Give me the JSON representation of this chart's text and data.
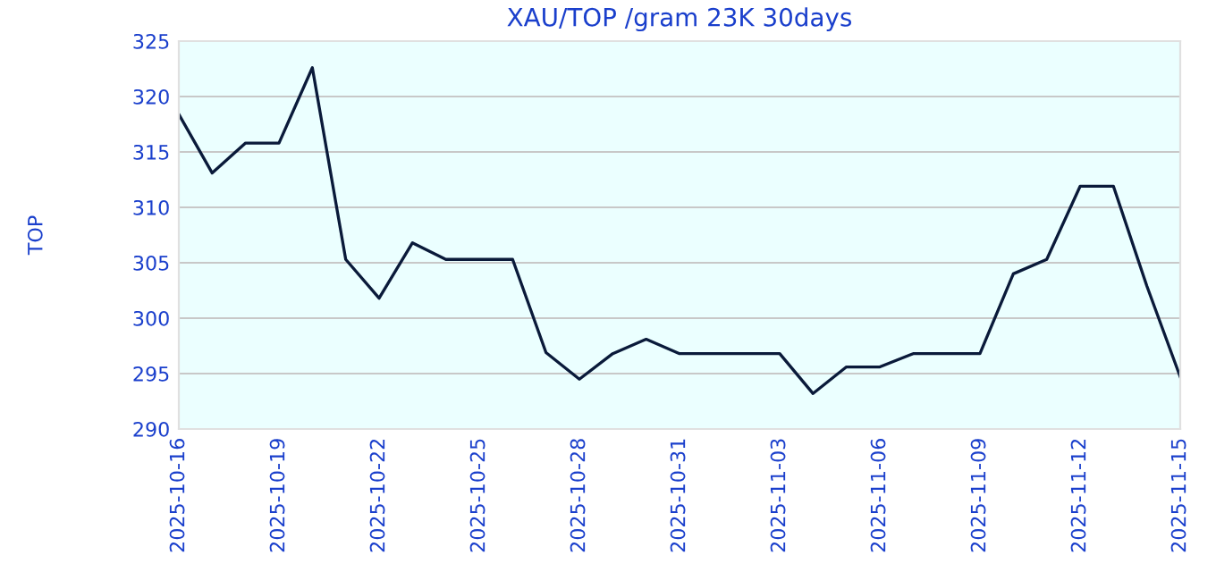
{
  "chart_data": {
    "type": "line",
    "title": "XAU/TOP /gram 23K 30days",
    "ylabel": "TOP",
    "x": [
      "2025-10-16",
      "2025-10-17",
      "2025-10-18",
      "2025-10-19",
      "2025-10-20",
      "2025-10-21",
      "2025-10-22",
      "2025-10-23",
      "2025-10-24",
      "2025-10-25",
      "2025-10-26",
      "2025-10-27",
      "2025-10-28",
      "2025-10-29",
      "2025-10-30",
      "2025-10-31",
      "2025-11-01",
      "2025-11-02",
      "2025-11-03",
      "2025-11-04",
      "2025-11-05",
      "2025-11-06",
      "2025-11-07",
      "2025-11-08",
      "2025-11-09",
      "2025-11-10",
      "2025-11-11",
      "2025-11-12",
      "2025-11-13",
      "2025-11-14",
      "2025-11-15"
    ],
    "series": [
      {
        "color": "#0a1a3a",
        "values": [
          318.4,
          313.1,
          315.8,
          315.8,
          322.6,
          305.3,
          301.8,
          306.8,
          305.3,
          305.3,
          305.3,
          296.9,
          294.5,
          296.8,
          298.1,
          296.8,
          296.8,
          296.8,
          296.8,
          293.2,
          295.6,
          295.6,
          296.8,
          296.8,
          296.8,
          304.0,
          305.3,
          311.9,
          311.9,
          302.9,
          294.7
        ]
      }
    ],
    "xlim": [
      "2025-10-16",
      "2025-11-15"
    ],
    "xticks": [
      "2025-10-16",
      "2025-10-19",
      "2025-10-22",
      "2025-10-25",
      "2025-10-28",
      "2025-10-31",
      "2025-11-03",
      "2025-11-06",
      "2025-11-09",
      "2025-11-12",
      "2025-11-15"
    ],
    "ylim": [
      290,
      325
    ],
    "yticks": [
      290,
      295,
      300,
      305,
      310,
      315,
      320,
      325
    ],
    "grid": "y",
    "legend": false,
    "marker": "none",
    "line_style": "solid"
  }
}
